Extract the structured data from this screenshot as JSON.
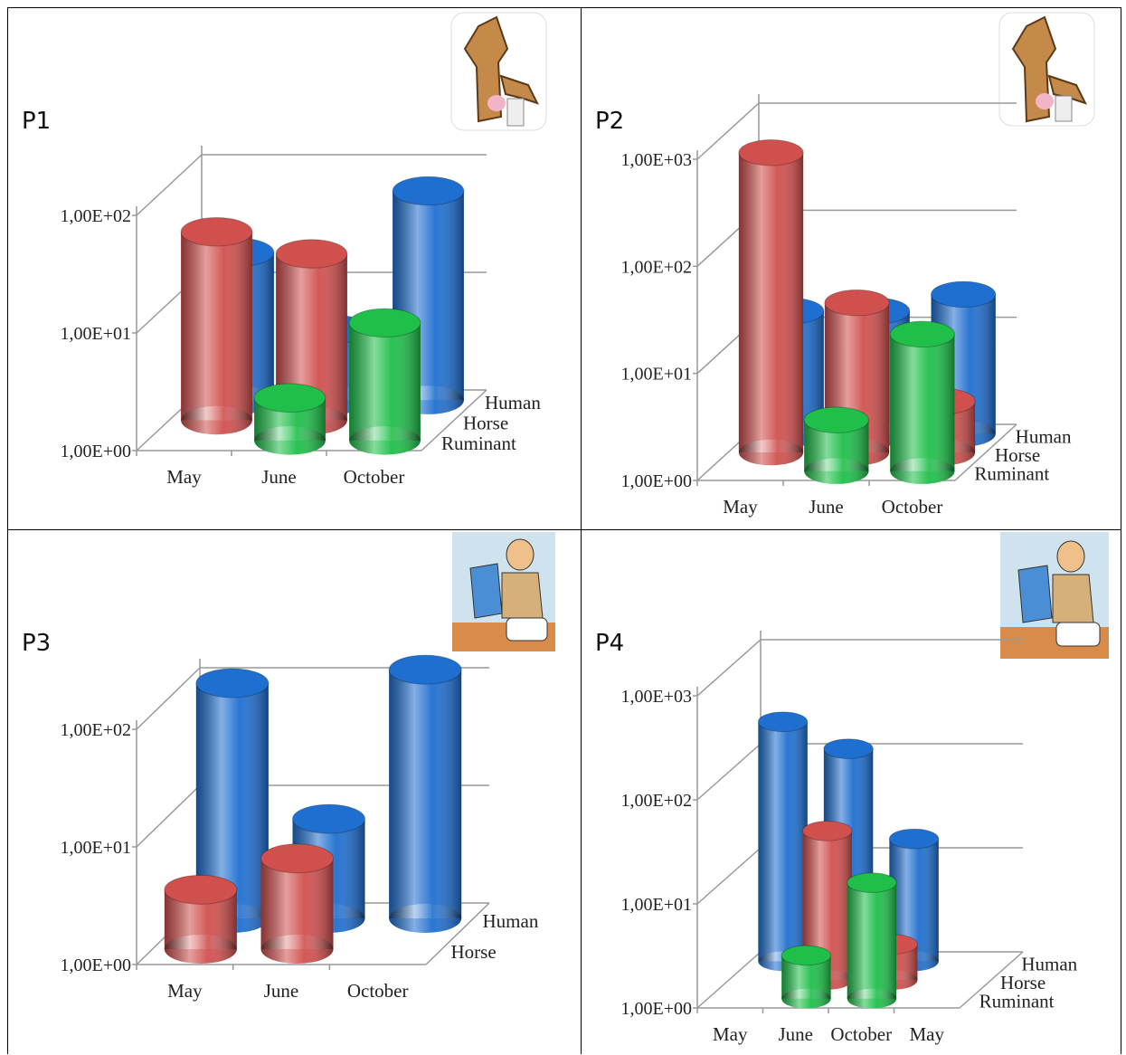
{
  "chart_data": [
    {
      "type": "bar3d",
      "label": "P1",
      "log": true,
      "categories": [
        "May",
        "June",
        "October"
      ],
      "series": [
        {
          "name": "Human",
          "color": "#1f6fd0",
          "values": [
            18,
            4,
            60
          ]
        },
        {
          "name": "Horse",
          "color": "#d0504e",
          "values": [
            40,
            26,
            null
          ]
        },
        {
          "name": "Ruminant",
          "color": "#1fbf4a",
          "values": [
            null,
            2.3,
            10
          ]
        }
      ],
      "ylim": [
        1,
        100
      ],
      "yticks": [
        {
          "value": 1,
          "label": "1,00E+00"
        },
        {
          "value": 10,
          "label": "1,00E+01"
        },
        {
          "value": 100,
          "label": "1,00E+02"
        }
      ]
    },
    {
      "type": "bar3d",
      "label": "P2",
      "log": true,
      "categories": [
        "May",
        "June",
        "October"
      ],
      "series": [
        {
          "name": "Human",
          "color": "#1f6fd0",
          "values": [
            14,
            14,
            20
          ]
        },
        {
          "name": "Horse",
          "color": "#d0504e",
          "values": [
            630,
            25,
            3
          ]
        },
        {
          "name": "Ruminant",
          "color": "#1fbf4a",
          "values": [
            null,
            3,
            19
          ]
        }
      ],
      "ylim": [
        1,
        1000
      ],
      "yticks": [
        {
          "value": 1,
          "label": "1,00E+00"
        },
        {
          "value": 10,
          "label": "1,00E+01"
        },
        {
          "value": 100,
          "label": "1,00E+02"
        },
        {
          "value": 1000,
          "label": "1,00E+03"
        }
      ]
    },
    {
      "type": "bar3d",
      "label": "P3",
      "log": true,
      "categories": [
        "May",
        "June",
        "October"
      ],
      "series": [
        {
          "name": "Human",
          "color": "#1f6fd0",
          "values": [
            100,
            7,
            130
          ]
        },
        {
          "name": "Horse",
          "color": "#d0504e",
          "values": [
            3.2,
            5.9,
            null
          ]
        }
      ],
      "ylim": [
        1,
        100
      ],
      "yticks": [
        {
          "value": 1,
          "label": "1,00E+00"
        },
        {
          "value": 10,
          "label": "1,00E+01"
        },
        {
          "value": 100,
          "label": "1,00E+02"
        }
      ]
    },
    {
      "type": "bar3d",
      "label": "P4",
      "log": true,
      "categories": [
        "May",
        "June",
        "October",
        "May"
      ],
      "series": [
        {
          "name": "Human",
          "color": "#1f6fd0",
          "values": [
            200,
            110,
            15,
            null
          ]
        },
        {
          "name": "Horse",
          "color": "#d0504e",
          "values": [
            null,
            27,
            2.2,
            null
          ]
        },
        {
          "name": "Ruminant",
          "color": "#1fbf4a",
          "values": [
            null,
            2.6,
            13,
            null
          ]
        }
      ],
      "ylim": [
        1,
        1000
      ],
      "yticks": [
        {
          "value": 1,
          "label": "1,00E+00"
        },
        {
          "value": 10,
          "label": "1,00E+01"
        },
        {
          "value": 100,
          "label": "1,00E+02"
        },
        {
          "value": 1000,
          "label": "1,00E+03"
        }
      ]
    }
  ]
}
